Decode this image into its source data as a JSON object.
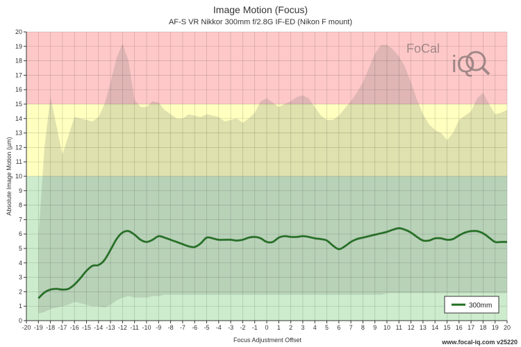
{
  "chart_data": {
    "type": "area",
    "title": "Image Motion (Focus)",
    "subtitle": "AF-S VR Nikkor 300mm f/2.8G IF-ED (Nikon F mount)",
    "xlabel": "Focus Adjustment Offset",
    "ylabel": "Absolute Image Motion (µm)",
    "xlim": [
      -20,
      20
    ],
    "ylim": [
      0,
      20
    ],
    "x_ticks": [
      -20,
      -19,
      -18,
      -17,
      -16,
      -15,
      -14,
      -13,
      -12,
      -11,
      -10,
      -9,
      -8,
      -7,
      -6,
      -5,
      -4,
      -3,
      -2,
      -1,
      0,
      1,
      2,
      3,
      4,
      5,
      6,
      7,
      8,
      9,
      10,
      11,
      12,
      13,
      14,
      15,
      16,
      17,
      18,
      19,
      20
    ],
    "y_ticks": [
      0,
      1,
      2,
      3,
      4,
      5,
      6,
      7,
      8,
      9,
      10,
      11,
      12,
      13,
      14,
      15,
      16,
      17,
      18,
      19,
      20
    ],
    "grid": true,
    "legend_position": "bottom-right",
    "zones": [
      {
        "from": 0,
        "to": 10,
        "color": "#cdeccd"
      },
      {
        "from": 10,
        "to": 15,
        "color": "#ffffc0"
      },
      {
        "from": 15,
        "to": 20,
        "color": "#ffc8c8"
      }
    ],
    "band": {
      "x": [
        -19,
        -18.5,
        -18,
        -17.5,
        -17,
        -16.5,
        -16,
        -15.5,
        -15,
        -14.5,
        -14,
        -13.5,
        -13,
        -12.5,
        -12,
        -11.5,
        -11,
        -10.5,
        -10,
        -9.5,
        -9,
        -8.5,
        -8,
        -7.5,
        -7,
        -6.5,
        -6,
        -5.5,
        -5,
        -4.5,
        -4,
        -3.5,
        -3,
        -2.5,
        -2,
        -1.5,
        -1,
        -0.5,
        0,
        0.5,
        1,
        1.5,
        2,
        2.5,
        3,
        3.5,
        4,
        4.5,
        5,
        5.5,
        6,
        6.5,
        7,
        7.5,
        8,
        8.5,
        9,
        9.5,
        10,
        10.5,
        11,
        11.5,
        12,
        12.5,
        13,
        13.5,
        14,
        14.5,
        15,
        15.5,
        16,
        16.5,
        17,
        17.5,
        18,
        18.5,
        19,
        19.5,
        20
      ],
      "upper": [
        5.8,
        12.0,
        15.5,
        13.5,
        11.5,
        12.8,
        14.1,
        14.0,
        13.9,
        13.8,
        14.1,
        15.0,
        16.5,
        18.2,
        19.2,
        18.0,
        15.3,
        14.8,
        14.8,
        15.2,
        15.1,
        14.6,
        14.3,
        14.0,
        14.0,
        14.3,
        14.2,
        14.1,
        14.3,
        14.2,
        14.1,
        13.8,
        13.9,
        14.0,
        13.7,
        14.0,
        14.4,
        15.2,
        15.4,
        15.1,
        14.8,
        15.0,
        15.2,
        15.5,
        15.6,
        15.4,
        14.8,
        14.2,
        13.9,
        13.9,
        14.2,
        14.7,
        15.2,
        15.8,
        16.5,
        17.5,
        18.5,
        19.1,
        19.1,
        18.8,
        18.3,
        17.6,
        16.5,
        15.3,
        14.3,
        13.6,
        13.2,
        13.0,
        12.5,
        13.0,
        13.9,
        14.2,
        14.5,
        15.4,
        15.8,
        15.0,
        14.3,
        14.4,
        14.6
      ],
      "lower": [
        0.5,
        0.6,
        0.8,
        0.9,
        1.0,
        1.1,
        1.3,
        1.2,
        1.1,
        1.0,
        1.0,
        0.9,
        1.1,
        1.4,
        1.6,
        1.7,
        1.6,
        1.6,
        1.6,
        1.7,
        1.7,
        1.8,
        1.8,
        1.8,
        1.8,
        1.8,
        1.8,
        1.8,
        1.8,
        1.8,
        1.8,
        1.8,
        1.8,
        1.8,
        1.8,
        1.8,
        1.8,
        1.8,
        1.8,
        1.8,
        1.8,
        1.8,
        1.8,
        1.8,
        1.8,
        1.8,
        1.8,
        1.8,
        1.8,
        1.8,
        1.8,
        1.8,
        1.8,
        1.8,
        1.8,
        1.8,
        1.8,
        1.8,
        1.9,
        1.9,
        1.9,
        1.9,
        1.9,
        1.9,
        1.9,
        1.9,
        1.9,
        1.9,
        1.9,
        1.9,
        1.9,
        1.9,
        1.9,
        1.9,
        1.9,
        1.9,
        1.9,
        1.9,
        1.9
      ]
    },
    "series": [
      {
        "name": "300mm",
        "color": "#1e6e1e",
        "x": [
          -19,
          -18.5,
          -18,
          -17.5,
          -17,
          -16.5,
          -16,
          -15.5,
          -15,
          -14.5,
          -14,
          -13.5,
          -13,
          -12.5,
          -12,
          -11.5,
          -11,
          -10.5,
          -10,
          -9.5,
          -9,
          -8.5,
          -8,
          -7.5,
          -7,
          -6.5,
          -6,
          -5.5,
          -5,
          -4.5,
          -4,
          -3.5,
          -3,
          -2.5,
          -2,
          -1.5,
          -1,
          -0.5,
          0,
          0.5,
          1,
          1.5,
          2,
          2.5,
          3,
          3.5,
          4,
          4.5,
          5,
          5.5,
          6,
          6.5,
          7,
          7.5,
          8,
          8.5,
          9,
          9.5,
          10,
          10.5,
          11,
          11.5,
          12,
          12.5,
          13,
          13.5,
          14,
          14.5,
          15,
          15.5,
          16,
          16.5,
          17,
          17.5,
          18,
          18.5,
          19,
          19.5,
          20
        ],
        "values": [
          1.55,
          1.95,
          2.15,
          2.2,
          2.15,
          2.2,
          2.5,
          2.95,
          3.45,
          3.8,
          3.85,
          4.2,
          4.9,
          5.65,
          6.1,
          6.2,
          5.95,
          5.6,
          5.45,
          5.6,
          5.85,
          5.75,
          5.6,
          5.45,
          5.3,
          5.15,
          5.1,
          5.35,
          5.75,
          5.7,
          5.6,
          5.6,
          5.6,
          5.55,
          5.6,
          5.75,
          5.8,
          5.7,
          5.45,
          5.45,
          5.75,
          5.85,
          5.8,
          5.8,
          5.85,
          5.8,
          5.7,
          5.65,
          5.55,
          5.2,
          4.95,
          5.15,
          5.45,
          5.65,
          5.75,
          5.85,
          5.95,
          6.05,
          6.15,
          6.3,
          6.4,
          6.3,
          6.1,
          5.8,
          5.55,
          5.55,
          5.7,
          5.7,
          5.6,
          5.65,
          5.9,
          6.1,
          6.2,
          6.2,
          6.05,
          5.75,
          5.45,
          5.45,
          5.45
        ]
      }
    ]
  },
  "legend": {
    "label": "300mm",
    "line_color": "#1e6e1e"
  },
  "watermark": {
    "text_top": "FoCal",
    "text_bottom": "iQ"
  },
  "footer": {
    "text": "www.focal-iq.com  v25220"
  }
}
